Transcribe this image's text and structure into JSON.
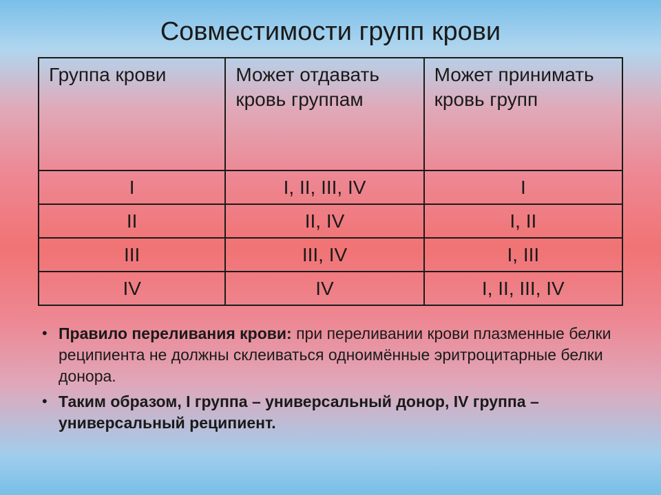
{
  "title": "Совместимости групп крови",
  "table": {
    "columns": [
      "Группа крови",
      "Может отдавать кровь группам",
      "Может принимать кровь групп"
    ],
    "rows": [
      [
        "I",
        "I, II, III, IV",
        "I"
      ],
      [
        "II",
        "II, IV",
        "I, II"
      ],
      [
        "III",
        "III, IV",
        "I, III"
      ],
      [
        "IV",
        "IV",
        "I, II, III, IV"
      ]
    ],
    "border_color": "#1a1a1a",
    "header_fontsize": 28,
    "cell_fontsize": 28
  },
  "notes": {
    "rule_label": "Правило переливания крови:",
    "rule_text": " при переливании крови плазменные белки реципиента не должны склеиваться одноимённые эритроцитарные белки донора.",
    "thus_label": "Таким образом, I группа – универсальный донор, IV группа – универсальный реципиент."
  },
  "style": {
    "fonts": {
      "title": 38,
      "note": 23
    },
    "text_color": "#1a1a1a"
  }
}
